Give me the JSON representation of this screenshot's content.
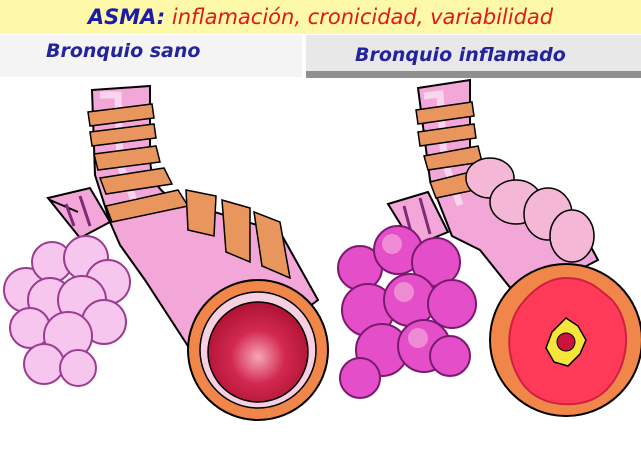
{
  "header": {
    "title": "ASMA:",
    "subtitle": " inflamación, cronicidad, variabilidad"
  },
  "panels": {
    "left_label": "Bronquio sano",
    "right_label": "Bronquio inflamado"
  },
  "colors": {
    "title_bg": "#fdf9a8",
    "title_text": "#1c1ca6",
    "subtitle_text": "#e01818",
    "label_text": "#24249a",
    "tube_pink": "#f3a6d8",
    "band_orange": "#e8965e",
    "alveoli_healthy": "#f6c6ef",
    "alveoli_inflamed": "#e44ec9",
    "lumen_red": "#c8143c",
    "wall_orange": "#f0864a",
    "inflamed_red": "#ff3a58",
    "mucus_yellow": "#f6e63a"
  }
}
